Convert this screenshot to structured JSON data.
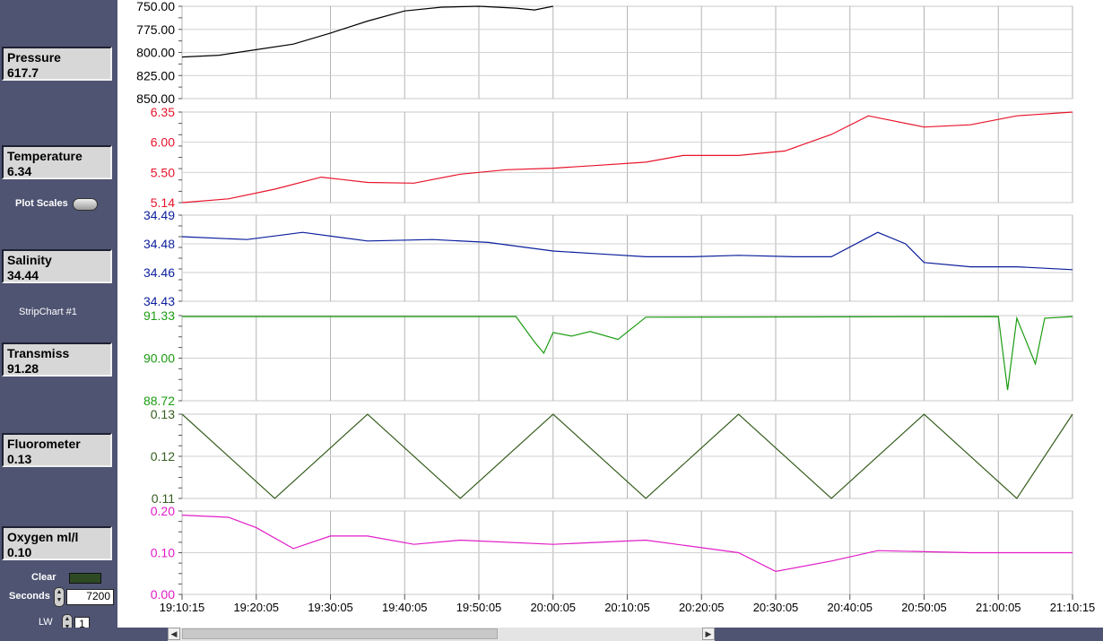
{
  "sidebar": {
    "readouts": [
      {
        "label": "Pressure",
        "value": "617.7"
      },
      {
        "label": "Temperature",
        "value": "6.34"
      },
      {
        "label": "Salinity",
        "value": "34.44"
      },
      {
        "label": "Transmiss",
        "value": "91.28"
      },
      {
        "label": "Fluorometer",
        "value": "0.13"
      },
      {
        "label": "Oxygen ml/l",
        "value": "0.10"
      }
    ],
    "plot_scales_label": "Plot Scales",
    "stripchart_label": "StripChart #1",
    "clear_label": "Clear",
    "seconds_label": "Seconds",
    "seconds_value": "7200",
    "lw_label": "LW",
    "lw_value": "1"
  },
  "chart_data": {
    "type": "line",
    "x_tick_labels": [
      "19:10:15",
      "19:20:05",
      "19:30:05",
      "19:40:05",
      "19:50:05",
      "20:00:05",
      "20:10:05",
      "20:20:05",
      "20:30:05",
      "20:40:05",
      "20:50:05",
      "21:00:05",
      "21:10:15"
    ],
    "panels": [
      {
        "name": "Pressure",
        "color": "#000000",
        "y_ticks": [
          "750.00",
          "775.00",
          "800.00",
          "825.00",
          "850.00"
        ],
        "ylim": [
          850,
          750
        ],
        "inverted": true,
        "points": [
          [
            0,
            805
          ],
          [
            4,
            803
          ],
          [
            8,
            797
          ],
          [
            12,
            791
          ],
          [
            16,
            779
          ],
          [
            20,
            766
          ],
          [
            24,
            755
          ],
          [
            28,
            751
          ],
          [
            32,
            750
          ],
          [
            36,
            752
          ],
          [
            38,
            754
          ],
          [
            40,
            750
          ]
        ]
      },
      {
        "name": "Temperature",
        "color": "#e8142a",
        "y_ticks": [
          "6.35",
          "6.00",
          "5.50",
          "5.14"
        ],
        "ylim": [
          5.14,
          6.35
        ],
        "points": [
          [
            0,
            5.14
          ],
          [
            5,
            5.19
          ],
          [
            10,
            5.32
          ],
          [
            15,
            5.48
          ],
          [
            20,
            5.41
          ],
          [
            25,
            5.4
          ],
          [
            30,
            5.52
          ],
          [
            35,
            5.58
          ],
          [
            40,
            5.6
          ],
          [
            45,
            5.64
          ],
          [
            50,
            5.68
          ],
          [
            54,
            5.77
          ],
          [
            60,
            5.77
          ],
          [
            65,
            5.83
          ],
          [
            70,
            6.05
          ],
          [
            74,
            6.3
          ],
          [
            80,
            6.15
          ],
          [
            85,
            6.18
          ],
          [
            90,
            6.3
          ],
          [
            96,
            6.35
          ]
        ]
      },
      {
        "name": "Salinity",
        "color": "#0a1e9c",
        "y_ticks": [
          "34.49",
          "34.48",
          "34.46",
          "34.43"
        ],
        "ylim": [
          34.43,
          34.49
        ],
        "points": [
          [
            0,
            34.475
          ],
          [
            7,
            34.473
          ],
          [
            13,
            34.478
          ],
          [
            20,
            34.472
          ],
          [
            27,
            34.473
          ],
          [
            33,
            34.471
          ],
          [
            40,
            34.465
          ],
          [
            45,
            34.463
          ],
          [
            50,
            34.461
          ],
          [
            55,
            34.461
          ],
          [
            60,
            34.462
          ],
          [
            66,
            34.461
          ],
          [
            70,
            34.461
          ],
          [
            75,
            34.478
          ],
          [
            78,
            34.47
          ],
          [
            80,
            34.457
          ],
          [
            85,
            34.454
          ],
          [
            90,
            34.454
          ],
          [
            96,
            34.452
          ]
        ]
      },
      {
        "name": "Transmiss",
        "color": "#1c9c12",
        "y_ticks": [
          "91.33",
          "90.00",
          "88.72"
        ],
        "ylim": [
          88.72,
          91.33
        ],
        "points": [
          [
            0,
            91.3
          ],
          [
            36,
            91.3
          ],
          [
            38,
            90.52
          ],
          [
            39,
            90.18
          ],
          [
            40,
            90.81
          ],
          [
            42,
            90.7
          ],
          [
            44,
            90.84
          ],
          [
            47,
            90.6
          ],
          [
            50,
            91.28
          ],
          [
            88,
            91.3
          ],
          [
            89,
            89.05
          ],
          [
            90,
            91.25
          ],
          [
            92,
            89.85
          ],
          [
            93,
            91.25
          ],
          [
            96,
            91.3
          ]
        ]
      },
      {
        "name": "Fluorometer",
        "color": "#355e1e",
        "y_ticks": [
          "0.13",
          "0.12",
          "0.11"
        ],
        "ylim": [
          0.11,
          0.13
        ],
        "points": [
          [
            0,
            0.13
          ],
          [
            10,
            0.11
          ],
          [
            20,
            0.13
          ],
          [
            30,
            0.11
          ],
          [
            40,
            0.13
          ],
          [
            50,
            0.11
          ],
          [
            60,
            0.13
          ],
          [
            70,
            0.11
          ],
          [
            80,
            0.13
          ],
          [
            90,
            0.11
          ],
          [
            96,
            0.13
          ]
        ]
      },
      {
        "name": "Oxygen ml/l",
        "color": "#e11cc7",
        "y_ticks": [
          "0.20",
          "0.10",
          "0.00"
        ],
        "ylim": [
          0.0,
          0.2
        ],
        "points": [
          [
            0,
            0.19
          ],
          [
            5,
            0.185
          ],
          [
            8,
            0.16
          ],
          [
            12,
            0.11
          ],
          [
            16,
            0.14
          ],
          [
            20,
            0.14
          ],
          [
            25,
            0.12
          ],
          [
            30,
            0.13
          ],
          [
            40,
            0.12
          ],
          [
            50,
            0.13
          ],
          [
            60,
            0.1
          ],
          [
            64,
            0.055
          ],
          [
            70,
            0.08
          ],
          [
            75,
            0.105
          ],
          [
            85,
            0.1
          ],
          [
            96,
            0.1
          ]
        ]
      }
    ]
  }
}
